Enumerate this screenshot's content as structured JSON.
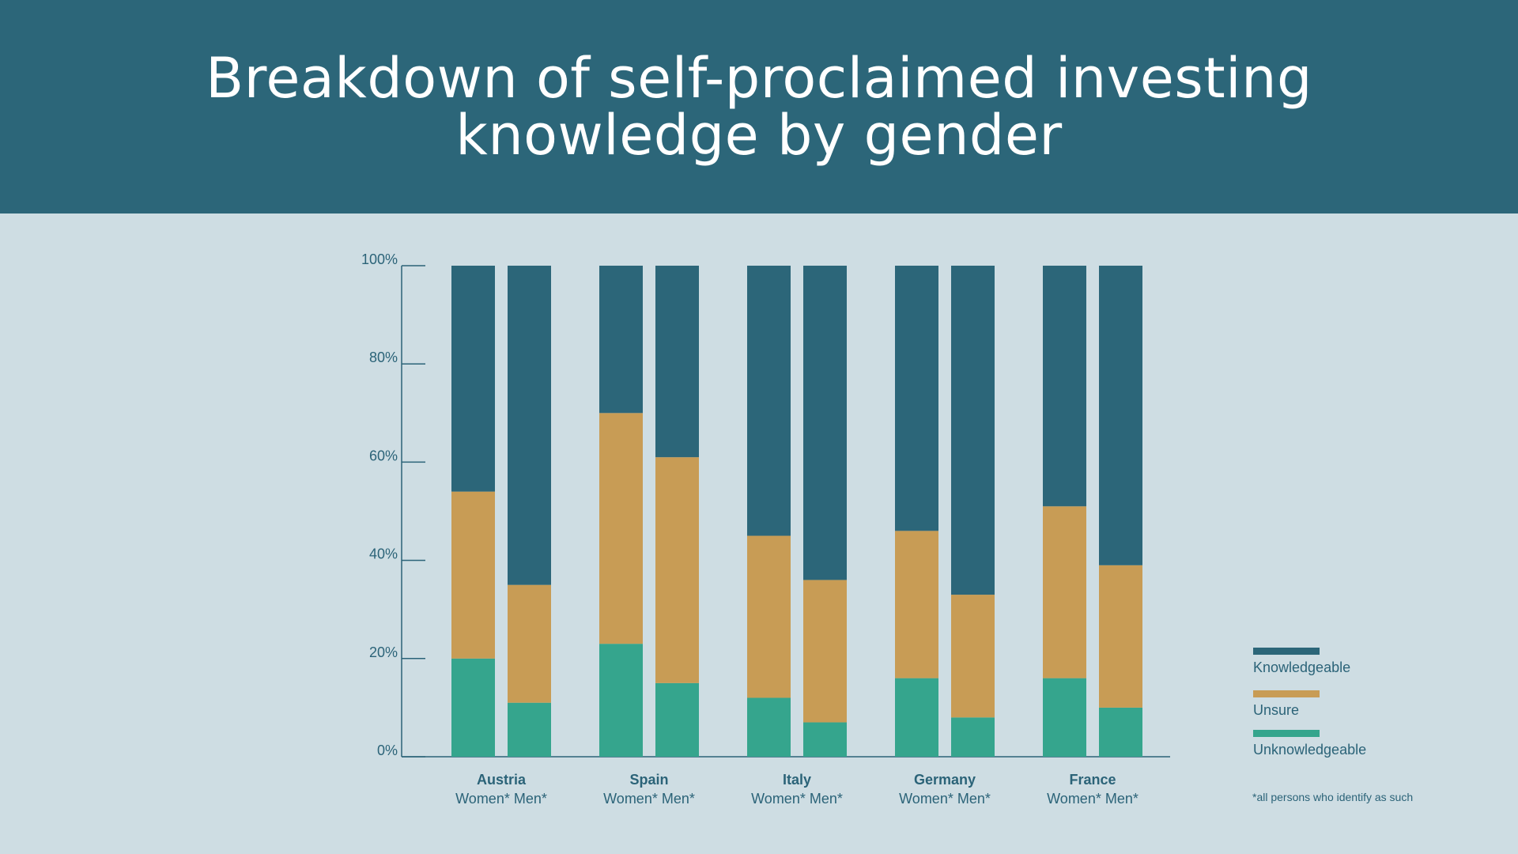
{
  "header": {
    "title": "Breakdown of self-proclaimed investing knowledge by gender"
  },
  "colors": {
    "header_bg": "#2c6679",
    "page_bg": "#cedde3",
    "knowledgeable": "#2c6679",
    "unsure": "#c89c55",
    "unknowledgeable": "#35a58d"
  },
  "chart_data": {
    "type": "bar",
    "stacked": true,
    "title": "Breakdown of self-proclaimed investing knowledge by gender",
    "ylim": [
      0,
      100
    ],
    "yticks": [
      "0%",
      "20%",
      "40%",
      "60%",
      "80%",
      "100%"
    ],
    "groups": [
      {
        "label": "Austria",
        "sub_labels": "Women* Men*"
      },
      {
        "label": "Spain",
        "sub_labels": "Women* Men*"
      },
      {
        "label": "Italy",
        "sub_labels": "Women* Men*"
      },
      {
        "label": "Germany",
        "sub_labels": "Women* Men*"
      },
      {
        "label": "France",
        "sub_labels": "Women* Men*"
      }
    ],
    "categories": [
      "Austria Women*",
      "Austria Men*",
      "Spain Women*",
      "Spain Men*",
      "Italy Women*",
      "Italy Men*",
      "Germany Women*",
      "Germany Men*",
      "France Women*",
      "France Men*"
    ],
    "series": [
      {
        "name": "Unknowledgeable",
        "values": [
          20,
          11,
          23,
          15,
          12,
          7,
          16,
          8,
          16,
          10
        ]
      },
      {
        "name": "Unsure",
        "values": [
          34,
          24,
          47,
          46,
          33,
          29,
          30,
          25,
          35,
          29
        ]
      },
      {
        "name": "Knowledgeable",
        "values": [
          46,
          65,
          30,
          39,
          55,
          64,
          54,
          67,
          49,
          61
        ]
      }
    ],
    "legend": {
      "position": "bottom-right",
      "items": [
        "Knowledgeable",
        "Unsure",
        "Unknowledgeable"
      ]
    },
    "footnote": "*all persons who identify as such"
  }
}
